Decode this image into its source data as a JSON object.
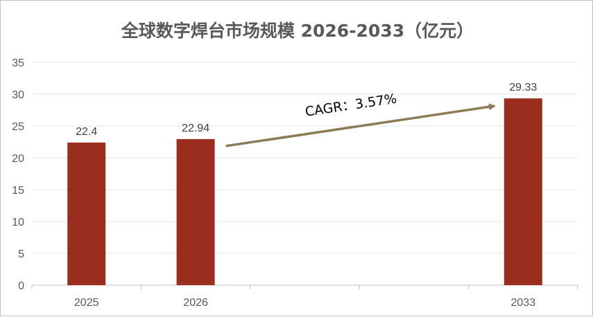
{
  "chart_data": {
    "type": "bar",
    "title": "全球数字焊台市场规模 2026-2033（亿元）",
    "categories": [
      "2025",
      "2026",
      "",
      "",
      "2033"
    ],
    "values": [
      22.4,
      22.94,
      null,
      null,
      29.33
    ],
    "data_labels": [
      "22.4",
      "22.94",
      "",
      "",
      "29.33"
    ],
    "ylim": [
      0,
      35
    ],
    "yticks": [
      0,
      5,
      10,
      15,
      20,
      25,
      30,
      35
    ],
    "grid": true,
    "bar_color": "#9B2D1F",
    "annotation": {
      "text": "CAGR：3.57%",
      "from_category": "2026",
      "to_category": "2033",
      "arrow_color": "#8C7A55"
    }
  }
}
